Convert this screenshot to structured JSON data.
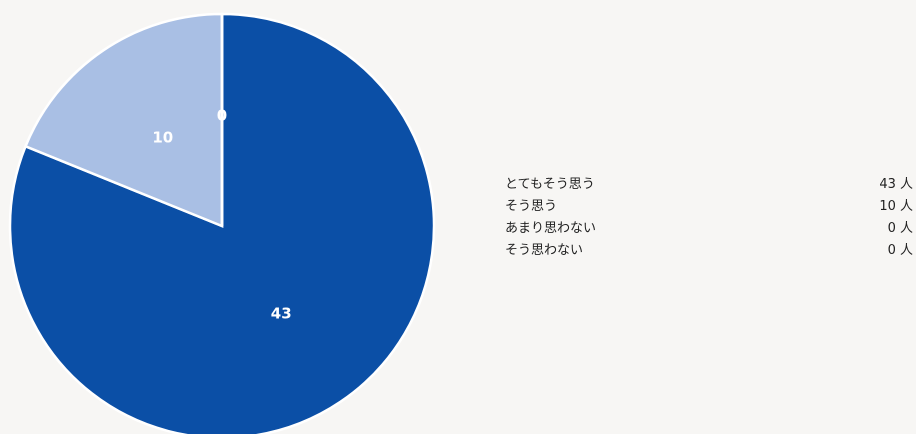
{
  "chart_data": {
    "type": "pie",
    "categories": [
      "とてもそう思う",
      "そう思う",
      "あまり思わない",
      "そう思わない"
    ],
    "values": [
      43,
      10,
      0,
      0
    ],
    "units": [
      "43 人",
      "10 人",
      "0 人",
      "0 人"
    ],
    "slice_labels": [
      "43",
      "10",
      "0",
      ""
    ],
    "colors": [
      "#0b4fa6",
      "#a9bfe4",
      "#e0e6f2",
      "#f0f0f0"
    ],
    "start_angle": "12 o'clock",
    "direction": "clockwise",
    "legend_position": "right"
  }
}
